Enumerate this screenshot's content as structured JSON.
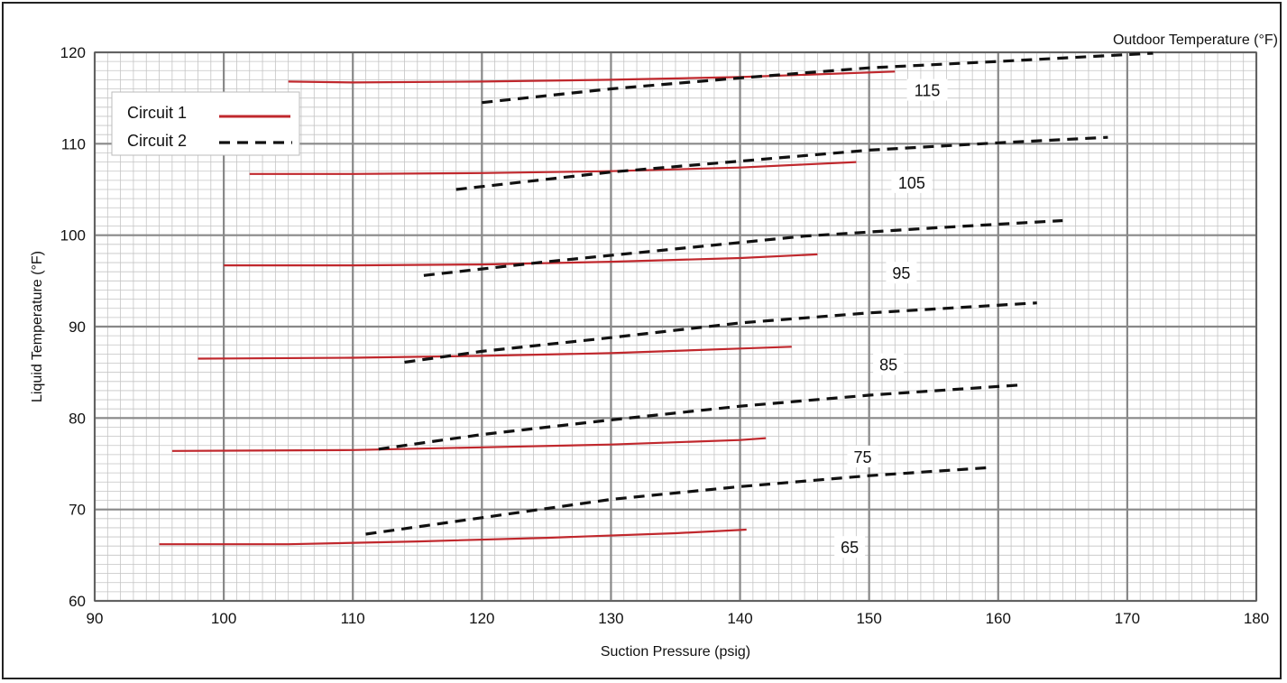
{
  "chart_data": {
    "type": "line",
    "title": "",
    "xlabel": "Suction Pressure (psig)",
    "ylabel": "Liquid Temperature (°F)",
    "series_group_label": "Outdoor Temperature (°F)",
    "xlim": [
      90,
      180
    ],
    "ylim": [
      60,
      120
    ],
    "xticks": [
      90,
      100,
      110,
      120,
      130,
      140,
      150,
      160,
      170,
      180
    ],
    "yticks": [
      60,
      70,
      80,
      90,
      100,
      110,
      120
    ],
    "grid": "major and minor",
    "legend_position": "top-left",
    "legend": [
      {
        "name": "Circuit 1",
        "color": "#c0282d",
        "style": "solid"
      },
      {
        "name": "Circuit 2",
        "color": "#111111",
        "style": "dashed"
      }
    ],
    "curve_labels": [
      {
        "text": "115",
        "x": 154.5,
        "y": 115.8
      },
      {
        "text": "105",
        "x": 153.3,
        "y": 105.7
      },
      {
        "text": "95",
        "x": 152.5,
        "y": 95.8
      },
      {
        "text": "85",
        "x": 151.5,
        "y": 85.8
      },
      {
        "text": "75",
        "x": 149.5,
        "y": 75.7
      },
      {
        "text": "65",
        "x": 148.5,
        "y": 65.8
      }
    ],
    "series": [
      {
        "name": "Circuit 1",
        "outdoor": "115",
        "points": [
          [
            105,
            116.8
          ],
          [
            110,
            116.7
          ],
          [
            120,
            116.8
          ],
          [
            130,
            117.0
          ],
          [
            140,
            117.3
          ],
          [
            152,
            117.9
          ]
        ]
      },
      {
        "name": "Circuit 2",
        "outdoor": "115",
        "points": [
          [
            120,
            114.5
          ],
          [
            130,
            116.0
          ],
          [
            140,
            117.2
          ],
          [
            150,
            118.3
          ],
          [
            160,
            119.0
          ],
          [
            172,
            119.9
          ]
        ]
      },
      {
        "name": "Circuit 1",
        "outdoor": "105",
        "points": [
          [
            102,
            106.7
          ],
          [
            110,
            106.7
          ],
          [
            120,
            106.8
          ],
          [
            130,
            107.0
          ],
          [
            140,
            107.4
          ],
          [
            149,
            108.0
          ]
        ]
      },
      {
        "name": "Circuit 2",
        "outdoor": "105",
        "points": [
          [
            118,
            105.0
          ],
          [
            130,
            106.9
          ],
          [
            140,
            108.1
          ],
          [
            150,
            109.3
          ],
          [
            160,
            110.1
          ],
          [
            168.5,
            110.7
          ]
        ]
      },
      {
        "name": "Circuit 1",
        "outdoor": "95",
        "points": [
          [
            100,
            96.7
          ],
          [
            110,
            96.7
          ],
          [
            120,
            96.8
          ],
          [
            130,
            97.1
          ],
          [
            140,
            97.5
          ],
          [
            146,
            97.9
          ]
        ]
      },
      {
        "name": "Circuit 2",
        "outdoor": "95",
        "points": [
          [
            115.5,
            95.6
          ],
          [
            125,
            97.1
          ],
          [
            135,
            98.5
          ],
          [
            145,
            99.9
          ],
          [
            155,
            100.8
          ],
          [
            165,
            101.6
          ]
        ]
      },
      {
        "name": "Circuit 1",
        "outdoor": "85",
        "points": [
          [
            98,
            86.5
          ],
          [
            110,
            86.6
          ],
          [
            120,
            86.8
          ],
          [
            130,
            87.1
          ],
          [
            140,
            87.6
          ],
          [
            144,
            87.8
          ]
        ]
      },
      {
        "name": "Circuit 2",
        "outdoor": "85",
        "points": [
          [
            114,
            86.1
          ],
          [
            120,
            87.3
          ],
          [
            130,
            88.8
          ],
          [
            140,
            90.4
          ],
          [
            150,
            91.5
          ],
          [
            163,
            92.6
          ]
        ]
      },
      {
        "name": "Circuit 1",
        "outdoor": "75",
        "points": [
          [
            96,
            76.4
          ],
          [
            110,
            76.5
          ],
          [
            120,
            76.8
          ],
          [
            130,
            77.1
          ],
          [
            140,
            77.6
          ],
          [
            142,
            77.8
          ]
        ]
      },
      {
        "name": "Circuit 2",
        "outdoor": "75",
        "points": [
          [
            112,
            76.6
          ],
          [
            120,
            78.2
          ],
          [
            130,
            79.8
          ],
          [
            140,
            81.3
          ],
          [
            150,
            82.5
          ],
          [
            161.5,
            83.6
          ]
        ]
      },
      {
        "name": "Circuit 1",
        "outdoor": "65",
        "points": [
          [
            95,
            66.2
          ],
          [
            105,
            66.2
          ],
          [
            115,
            66.5
          ],
          [
            125,
            66.9
          ],
          [
            135,
            67.4
          ],
          [
            140.5,
            67.8
          ]
        ]
      },
      {
        "name": "Circuit 2",
        "outdoor": "65",
        "points": [
          [
            111,
            67.3
          ],
          [
            120,
            69.1
          ],
          [
            130,
            71.1
          ],
          [
            140,
            72.5
          ],
          [
            150,
            73.7
          ],
          [
            159.5,
            74.6
          ]
        ]
      }
    ]
  }
}
